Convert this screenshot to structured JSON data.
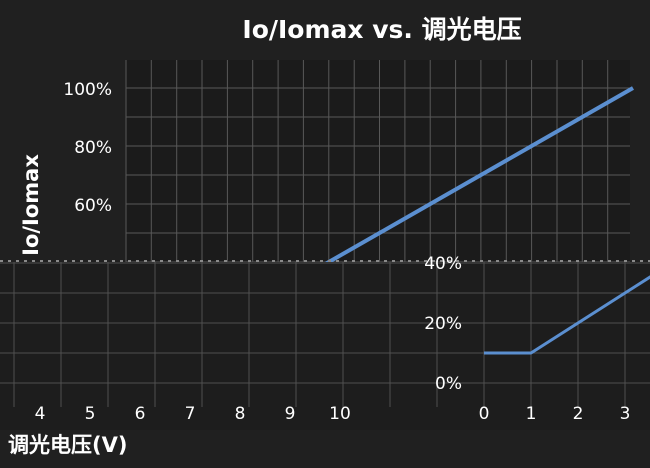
{
  "chart_data": {
    "type": "line",
    "title": "Io/Iomax vs. 调光电压",
    "ylabel": "Io/Iomax",
    "xlabel": "调光电压(V)",
    "ylim": [
      0,
      100
    ],
    "grid": true,
    "y_ticks": [
      "0%",
      "20%",
      "40%",
      "60%",
      "80%",
      "100%"
    ],
    "x_ticks_upper": [
      "0",
      "1",
      "2",
      "3",
      "4",
      "5",
      "6",
      "7",
      "8",
      "9",
      "10"
    ],
    "x_ticks_lower_left": [
      "4",
      "5",
      "6",
      "7",
      "8",
      "9",
      "10"
    ],
    "x_ticks_lower_right": [
      "0",
      "1",
      "2",
      "3"
    ],
    "series": [
      {
        "x": [
          0,
          1,
          2,
          3,
          4,
          5,
          6,
          7,
          8,
          9,
          10
        ],
        "values": [
          10,
          10,
          20,
          30,
          40,
          50,
          60,
          70,
          80,
          90,
          100
        ],
        "color": "#5b8fd0"
      }
    ]
  }
}
